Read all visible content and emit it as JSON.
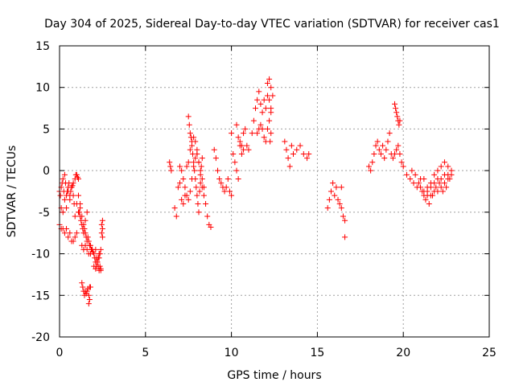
{
  "chart_data": {
    "type": "scatter",
    "title": "Day 304 of 2025, Sidereal Day-to-day VTEC variation (SDTVAR) for receiver cas1",
    "xlabel": "GPS time / hours",
    "ylabel": "SDTVAR / TECUs",
    "xlim": [
      0,
      25
    ],
    "ylim": [
      -20,
      15
    ],
    "xticks": [
      0,
      5,
      10,
      15,
      20,
      25
    ],
    "yticks": [
      -20,
      -15,
      -10,
      -5,
      0,
      5,
      10,
      15
    ],
    "xtick_labels": [
      "0",
      "5",
      "10",
      "15",
      "20",
      "25"
    ],
    "ytick_labels": [
      "-20",
      "-15",
      "-10",
      "-5",
      "0",
      "5",
      "10",
      "15"
    ],
    "grid": true,
    "marker": "+",
    "color": "#ff0000",
    "series": [
      {
        "name": "SDTVAR",
        "x": [
          0.0,
          0.05,
          0.1,
          0.15,
          0.2,
          0.25,
          0.3,
          0.35,
          0.4,
          0.45,
          0.5,
          0.55,
          0.6,
          0.65,
          0.7,
          0.75,
          0.8,
          0.85,
          0.9,
          0.95,
          1.0,
          1.05,
          1.1,
          1.15,
          1.2,
          1.25,
          1.3,
          1.35,
          1.4,
          1.45,
          1.5,
          1.55,
          1.6,
          1.65,
          1.7,
          1.75,
          1.8,
          1.85,
          1.9,
          1.95,
          2.0,
          2.05,
          2.1,
          2.15,
          2.2,
          2.25,
          2.3,
          2.35,
          2.4,
          0.0,
          0.1,
          0.2,
          0.3,
          0.4,
          0.5,
          0.6,
          0.7,
          0.8,
          0.9,
          1.0,
          1.1,
          1.2,
          1.3,
          1.4,
          1.5,
          1.6,
          1.7,
          1.8,
          1.9,
          2.0,
          2.1,
          2.2,
          2.3,
          2.4,
          0.1,
          0.2,
          0.3,
          0.4,
          0.5,
          0.6,
          0.7,
          0.8,
          0.9,
          1.0,
          1.1,
          1.2,
          1.3,
          1.4,
          1.5,
          1.6,
          1.3,
          1.35,
          1.4,
          1.45,
          1.5,
          1.55,
          1.6,
          1.65,
          1.7,
          1.75,
          1.8,
          1.7,
          1.75,
          2.1,
          2.15,
          2.2,
          2.25,
          2.3,
          2.35,
          2.4,
          2.45,
          2.5,
          2.45,
          2.5,
          2.5,
          6.4,
          6.45,
          6.5,
          6.7,
          6.8,
          6.9,
          7.0,
          7.1,
          7.2,
          7.3,
          7.4,
          7.5,
          7.6,
          7.7,
          7.8,
          7.9,
          8.0,
          8.1,
          8.2,
          8.3,
          8.4,
          8.5,
          8.6,
          8.7,
          8.8,
          7.5,
          7.55,
          7.6,
          7.65,
          7.7,
          7.75,
          7.8,
          7.85,
          7.9,
          7.95,
          8.0,
          8.05,
          8.1,
          8.15,
          8.2,
          8.25,
          8.3,
          7.0,
          7.1,
          7.2,
          7.3,
          7.4,
          7.5,
          7.6,
          7.7,
          7.8,
          7.9,
          8.0,
          8.0,
          8.1,
          8.2,
          8.3,
          8.4,
          9.0,
          9.1,
          9.2,
          9.3,
          9.4,
          9.5,
          9.6,
          9.7,
          9.8,
          9.9,
          10.0,
          10.0,
          10.1,
          10.2,
          10.3,
          10.4,
          10.5,
          10.6,
          10.7,
          10.8,
          10.9,
          11.0,
          10.3,
          10.4,
          10.5,
          10.6,
          10.7,
          11.2,
          11.3,
          11.4,
          11.5,
          11.6,
          11.7,
          11.8,
          11.9,
          12.0,
          12.1,
          12.2,
          12.3,
          12.4,
          11.5,
          11.6,
          11.7,
          11.8,
          11.9,
          12.0,
          12.1,
          12.2,
          12.3,
          12.1,
          12.2,
          12.3,
          12.25,
          12.3,
          13.1,
          13.2,
          13.3,
          13.4,
          13.5,
          13.6,
          13.8,
          14.0,
          14.2,
          14.4,
          14.5,
          15.6,
          15.7,
          15.8,
          15.9,
          16.0,
          16.1,
          16.2,
          16.3,
          16.4,
          16.5,
          16.6,
          16.6,
          16.4,
          18.0,
          18.1,
          18.2,
          18.3,
          18.4,
          18.5,
          18.6,
          18.7,
          18.8,
          18.9,
          19.0,
          19.1,
          19.2,
          19.3,
          19.4,
          19.5,
          19.6,
          19.7,
          19.8,
          19.9,
          19.5,
          19.55,
          19.6,
          19.65,
          19.7,
          19.75,
          19.8,
          20.0,
          20.2,
          20.4,
          20.6,
          20.8,
          21.0,
          21.2,
          21.4,
          21.6,
          21.8,
          22.0,
          22.2,
          22.4,
          22.6,
          22.8,
          20.5,
          20.7,
          20.9,
          21.1,
          21.3,
          21.5,
          21.7,
          21.9,
          22.1,
          22.3,
          22.5,
          22.7,
          21.0,
          21.2,
          21.4,
          21.6,
          21.8,
          22.0,
          22.2,
          22.4,
          22.6,
          22.8,
          21.2,
          21.4,
          21.6,
          21.8,
          22.0,
          22.2,
          22.4,
          22.6
        ],
        "y": [
          -2.5,
          -3.0,
          -2.0,
          -1.5,
          -1.0,
          -2.5,
          -0.5,
          -1.5,
          -3.0,
          -2.5,
          -2.0,
          -1.5,
          -3.5,
          -2.5,
          -2.0,
          -1.8,
          -3.0,
          -4.0,
          -1.0,
          -0.5,
          -0.5,
          -0.8,
          -1.0,
          -5.0,
          -5.5,
          -6.0,
          -6.5,
          -7.0,
          -7.5,
          -7.0,
          -7.5,
          -8.0,
          -8.5,
          -8.0,
          -8.5,
          -9.0,
          -9.0,
          -9.5,
          -9.5,
          -9.8,
          -10.0,
          -10.5,
          -11.0,
          -11.5,
          -11.0,
          -10.5,
          -10.0,
          -10.0,
          -9.5,
          -6.5,
          -7.0,
          -7.0,
          -7.5,
          -7.0,
          -8.0,
          -7.5,
          -8.5,
          -8.5,
          -8.0,
          -7.5,
          -5.0,
          -4.5,
          -9.0,
          -9.5,
          -9.0,
          -9.5,
          -10.0,
          -10.0,
          -9.5,
          -11.5,
          -11.8,
          -11.0,
          -10.5,
          -12.0,
          -4.5,
          -5.0,
          -3.5,
          -4.5,
          -2.5,
          -3.0,
          -2.0,
          -1.5,
          -5.5,
          -4.0,
          -3.0,
          -4.0,
          -5.5,
          -6.5,
          -6.0,
          -5.0,
          -13.5,
          -14.0,
          -14.5,
          -15.0,
          -14.5,
          -14.8,
          -14.5,
          -14.2,
          -15.0,
          -14.0,
          -14.0,
          -16.0,
          -15.5,
          -9.5,
          -10.5,
          -11.0,
          -11.5,
          -12.0,
          -11.5,
          -11.8,
          -7.5,
          -7.0,
          -6.5,
          -6.0,
          -8.0,
          1.0,
          0.5,
          0.0,
          -4.5,
          -5.5,
          -2.0,
          -1.5,
          -3.5,
          -4.0,
          -3.0,
          0.5,
          1.0,
          2.5,
          3.5,
          4.0,
          3.5,
          2.0,
          1.0,
          -0.5,
          -2.0,
          -3.0,
          -4.0,
          -5.5,
          -6.5,
          -6.8,
          6.5,
          5.5,
          4.5,
          4.0,
          3.0,
          2.0,
          1.0,
          0.0,
          -1.0,
          -2.0,
          -3.0,
          -4.0,
          -5.0,
          -2.5,
          -1.5,
          0.5,
          1.5,
          0.5,
          0.0,
          -1.0,
          -2.0,
          -3.0,
          -3.5,
          -2.5,
          -1.0,
          0.5,
          1.5,
          2.5,
          2.0,
          1.0,
          0.0,
          -1.0,
          -2.0,
          2.5,
          1.5,
          0.0,
          -1.0,
          -1.5,
          -2.0,
          -2.5,
          -2.0,
          -1.0,
          -2.5,
          -3.0,
          4.5,
          2.0,
          1.0,
          0.0,
          -1.0,
          3.0,
          2.0,
          4.5,
          5.0,
          3.0,
          2.5,
          5.5,
          4.0,
          3.5,
          3.0,
          2.5,
          4.5,
          6.0,
          7.5,
          8.5,
          9.5,
          8.0,
          7.0,
          8.5,
          7.5,
          9.0,
          8.5,
          7.5,
          9.0,
          4.5,
          5.0,
          5.5,
          5.0,
          4.0,
          3.5,
          5.0,
          6.0,
          7.0,
          10.5,
          11.0,
          10.0,
          3.5,
          4.5,
          3.5,
          2.5,
          1.5,
          0.5,
          3.0,
          2.0,
          2.5,
          3.0,
          2.0,
          1.5,
          2.0,
          -4.5,
          -3.5,
          -2.5,
          -1.5,
          -3.0,
          -2.0,
          -3.5,
          -4.0,
          -4.5,
          -5.5,
          -6.0,
          -8.0,
          -2.0,
          0.5,
          0.0,
          1.0,
          2.0,
          3.0,
          3.5,
          2.5,
          2.0,
          3.0,
          1.5,
          2.5,
          3.5,
          4.5,
          2.0,
          1.5,
          2.0,
          2.5,
          3.0,
          2.0,
          1.0,
          8.0,
          7.5,
          7.0,
          6.5,
          6.0,
          5.5,
          6.0,
          0.5,
          -0.5,
          -1.0,
          -1.5,
          -2.0,
          -1.0,
          -2.5,
          -3.0,
          -2.0,
          -1.5,
          -2.5,
          -1.0,
          -0.5,
          -1.0,
          -0.5,
          0.0,
          -0.5,
          -1.5,
          -2.5,
          -3.5,
          -4.0,
          -3.0,
          -2.0,
          -1.5,
          -2.5,
          -2.0,
          -1.0,
          -2.0,
          -3.0,
          -2.5,
          -1.5,
          -0.5,
          0.0,
          0.5,
          1.0,
          0.5,
          0.0,
          -1.0,
          -2.0,
          -3.0,
          -2.5,
          -1.0,
          -2.0,
          -1.5,
          -0.5
        ]
      }
    ]
  }
}
